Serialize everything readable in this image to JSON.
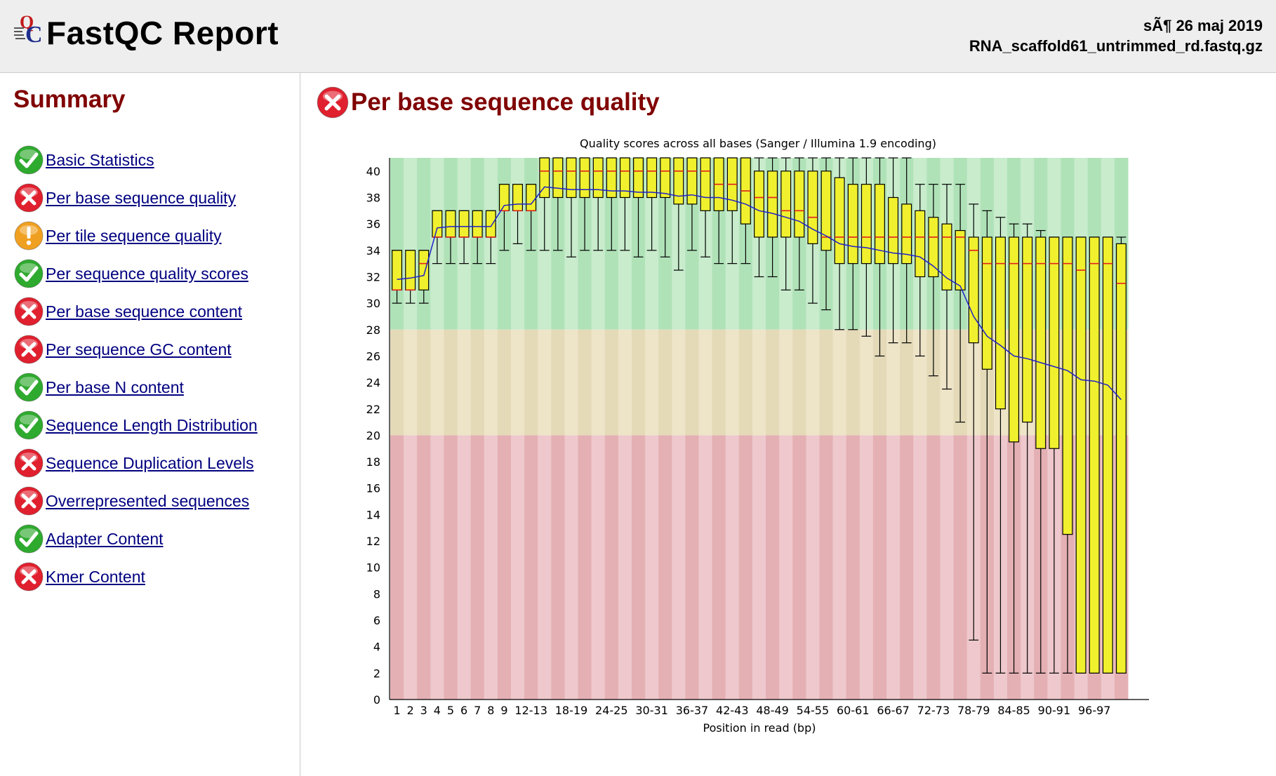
{
  "header": {
    "title": "FastQC Report",
    "date": "sÃ¶ 26 maj 2019",
    "filename": "RNA_scaffold61_untrimmed_rd.fastq.gz"
  },
  "sidebar": {
    "title": "Summary",
    "modules": [
      {
        "label": "Basic Statistics",
        "status": "pass"
      },
      {
        "label": "Per base sequence quality",
        "status": "fail"
      },
      {
        "label": "Per tile sequence quality",
        "status": "warn"
      },
      {
        "label": "Per sequence quality scores",
        "status": "pass"
      },
      {
        "label": "Per base sequence content",
        "status": "fail"
      },
      {
        "label": "Per sequence GC content",
        "status": "fail"
      },
      {
        "label": "Per base N content",
        "status": "pass"
      },
      {
        "label": "Sequence Length Distribution",
        "status": "pass"
      },
      {
        "label": "Sequence Duplication Levels",
        "status": "fail"
      },
      {
        "label": "Overrepresented sequences",
        "status": "fail"
      },
      {
        "label": "Adapter Content",
        "status": "pass"
      },
      {
        "label": "Kmer Content",
        "status": "fail"
      }
    ]
  },
  "main": {
    "section_title": "Per base sequence quality",
    "section_status": "fail"
  },
  "colors": {
    "pass": "#2eaa2e",
    "fail": "#e0202e",
    "warn": "#f0a020",
    "heading": "#800000",
    "link": "#000080",
    "box_fill": "#f0f02e",
    "median": "#e02020",
    "mean_line": "#2020c8",
    "zone_good": [
      "#b0e2b8",
      "#c8eccc"
    ],
    "zone_warn": [
      "#e4dab8",
      "#eee4c8"
    ],
    "zone_bad": [
      "#e4b0b4",
      "#eec8cc"
    ]
  },
  "chart_data": {
    "type": "box",
    "title": "Quality scores across all bases (Sanger / Illumina 1.9 encoding)",
    "xlabel": "Position in read (bp)",
    "ylabel": "",
    "ylim": [
      0,
      41
    ],
    "yticks": [
      0,
      2,
      4,
      6,
      8,
      10,
      12,
      14,
      16,
      18,
      20,
      22,
      24,
      26,
      28,
      30,
      32,
      34,
      36,
      38,
      40
    ],
    "zones": {
      "bad": [
        0,
        20
      ],
      "warn": [
        20,
        28
      ],
      "good": [
        28,
        41
      ]
    },
    "categories": [
      "1",
      "2",
      "3",
      "4",
      "5",
      "6",
      "7",
      "8",
      "9",
      "10-11",
      "12-13",
      "14-15",
      "16-17",
      "18-19",
      "20-21",
      "22-23",
      "24-25",
      "26-27",
      "28-29",
      "30-31",
      "32-33",
      "34-35",
      "36-37",
      "38-39",
      "40-41",
      "42-43",
      "44-45",
      "46-47",
      "48-49",
      "50-51",
      "52-53",
      "54-55",
      "56-57",
      "58-59",
      "60-61",
      "62-63",
      "64-65",
      "66-67",
      "68-69",
      "70-71",
      "72-73",
      "74-75",
      "76-77",
      "78-79",
      "80-81",
      "82-83",
      "84-85",
      "86-87",
      "88-89",
      "90-91",
      "92-93",
      "94-95",
      "96-97",
      "98-99",
      "100-101"
    ],
    "xtick_labels": [
      "1",
      "2",
      "3",
      "4",
      "5",
      "6",
      "7",
      "8",
      "9",
      "12-13",
      "18-19",
      "24-25",
      "30-31",
      "36-37",
      "42-43",
      "48-49",
      "54-55",
      "60-61",
      "66-67",
      "72-73",
      "78-79",
      "84-85",
      "90-91",
      "96-97"
    ],
    "series": [
      {
        "name": "lower_whisker",
        "values": [
          30,
          30,
          30,
          33,
          33,
          33,
          33,
          33,
          34,
          34.5,
          34,
          34,
          34,
          33.5,
          34,
          34,
          34,
          34,
          33.5,
          34,
          33.5,
          32.5,
          34,
          33.5,
          33,
          33,
          33,
          32,
          32,
          31,
          31,
          30,
          29.5,
          28,
          28,
          27.5,
          26,
          27,
          27,
          26,
          24.5,
          23.5,
          21,
          4.5,
          2,
          2,
          2,
          2,
          2,
          2,
          2,
          2,
          2,
          2,
          2
        ]
      },
      {
        "name": "q1",
        "values": [
          31,
          31,
          31,
          35,
          35,
          35,
          35,
          35,
          37,
          37,
          37,
          38,
          38,
          38,
          38,
          38,
          38,
          38,
          38,
          38,
          38,
          37.5,
          37.5,
          37,
          37,
          37,
          36,
          35,
          35,
          35,
          35,
          34.5,
          34,
          33,
          33,
          33,
          33,
          33,
          33,
          32,
          32,
          31,
          31,
          27,
          25,
          22,
          19.5,
          21,
          19,
          19,
          12.5,
          2,
          2,
          2,
          2
        ]
      },
      {
        "name": "median",
        "values": [
          31,
          31,
          33,
          35,
          35,
          35,
          35,
          35,
          37,
          37,
          37,
          40,
          40,
          40,
          40,
          40,
          40,
          40,
          40,
          40,
          40,
          40,
          40,
          40,
          39,
          39,
          38.5,
          38,
          38,
          37,
          37,
          36.5,
          35,
          35,
          35,
          35,
          35,
          35,
          35,
          35,
          35,
          35,
          35,
          34,
          33,
          33,
          33,
          33,
          33,
          33,
          33,
          32.5,
          33,
          33,
          31.5
        ]
      },
      {
        "name": "q3",
        "values": [
          34,
          34,
          34,
          37,
          37,
          37,
          37,
          37,
          39,
          39,
          39,
          41,
          41,
          41,
          41,
          41,
          41,
          41,
          41,
          41,
          41,
          41,
          41,
          41,
          41,
          41,
          41,
          40,
          40,
          40,
          40,
          40,
          40,
          39.5,
          39,
          39,
          39,
          38,
          37.5,
          37,
          36.5,
          36,
          35.5,
          35,
          35,
          35,
          35,
          35,
          35,
          35,
          35,
          35,
          35,
          35,
          34.5
        ]
      },
      {
        "name": "upper_whisker",
        "values": [
          34,
          34,
          34,
          37,
          37,
          37,
          37,
          37,
          39,
          39,
          39,
          41,
          41,
          41,
          41,
          41,
          41,
          41,
          41,
          41,
          41,
          41,
          41,
          41,
          41,
          41,
          41,
          41,
          41,
          41,
          41,
          41,
          41,
          41,
          41,
          41,
          41,
          41,
          41,
          39,
          39,
          39,
          39,
          37.5,
          37,
          36.5,
          36,
          36,
          35.5,
          35,
          35,
          35,
          35,
          35,
          35
        ]
      },
      {
        "name": "mean",
        "values": [
          31.8,
          31.9,
          32.1,
          35.7,
          35.8,
          35.8,
          35.8,
          35.8,
          37.4,
          37.5,
          37.5,
          38.8,
          38.7,
          38.6,
          38.6,
          38.6,
          38.5,
          38.5,
          38.4,
          38.4,
          38.3,
          38.1,
          38.2,
          38.0,
          38.0,
          37.8,
          37.5,
          37.0,
          36.8,
          36.5,
          36.2,
          35.6,
          35.1,
          34.5,
          34.3,
          34.2,
          34.0,
          33.8,
          33.7,
          33.5,
          32.8,
          31.9,
          31.3,
          29.0,
          27.5,
          26.8,
          26.0,
          25.8,
          25.5,
          25.2,
          24.9,
          24.2,
          24.1,
          23.8,
          22.7
        ]
      }
    ]
  }
}
